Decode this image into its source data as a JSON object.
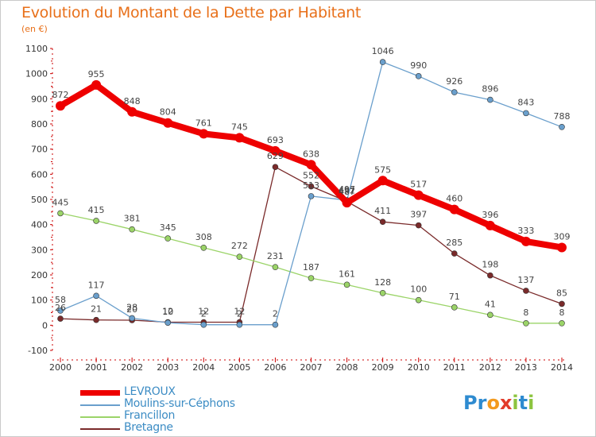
{
  "header": {
    "title": "Evolution du Montant de la Dette par Habitant",
    "unit": "(en €)"
  },
  "logo": {
    "text": "Proxiti",
    "letters": [
      {
        "ch": "P",
        "color": "#2e8bd0"
      },
      {
        "ch": "r",
        "color": "#2e8bd0"
      },
      {
        "ch": "o",
        "color": "#f39a1e"
      },
      {
        "ch": "x",
        "color": "#e23b2a"
      },
      {
        "ch": "i",
        "color": "#8cc43f"
      },
      {
        "ch": "t",
        "color": "#2e8bd0"
      },
      {
        "ch": "i",
        "color": "#8cc43f"
      }
    ]
  },
  "chart_data": {
    "type": "line",
    "x": [
      2000,
      2001,
      2002,
      2003,
      2004,
      2005,
      2006,
      2007,
      2008,
      2009,
      2010,
      2011,
      2012,
      2013,
      2014
    ],
    "ylim": [
      -100,
      1100
    ],
    "yticks": [
      -100,
      0,
      100,
      200,
      300,
      400,
      500,
      600,
      700,
      800,
      900,
      1000,
      1100
    ],
    "grid": false,
    "legend_position": "bottom-left",
    "series": [
      {
        "name": "Bretagne",
        "color": "#7a2a2a",
        "values": [
          26,
          21,
          20,
          12,
          12,
          12,
          629,
          552,
          492,
          411,
          397,
          285,
          198,
          137,
          85
        ],
        "labels": [
          "26",
          "21",
          "20",
          "12",
          "12",
          "12",
          "629",
          "552",
          "492",
          "411",
          "397",
          "285",
          "198",
          "137",
          "85"
        ]
      },
      {
        "name": "Francillon",
        "color": "#9bd468",
        "values": [
          445,
          415,
          381,
          345,
          308,
          272,
          231,
          187,
          161,
          128,
          100,
          71,
          41,
          8,
          8
        ],
        "labels": [
          "445",
          "415",
          "381",
          "345",
          "308",
          "272",
          "231",
          "187",
          "161",
          "128",
          "100",
          "71",
          "41",
          "8",
          "8"
        ]
      },
      {
        "name": "Moulins-sur-Céphons",
        "color": "#6a9fcc",
        "values": [
          58,
          117,
          28,
          10,
          2,
          2,
          2,
          513,
          497,
          1046,
          990,
          926,
          896,
          843,
          788
        ],
        "labels": [
          "58",
          "117",
          "28",
          "10",
          "2",
          "2",
          "2",
          "513",
          "497",
          "1046",
          "990",
          "926",
          "896",
          "843",
          "788"
        ]
      },
      {
        "name": "LEVROUX",
        "color": "#ee0000",
        "values": [
          872,
          955,
          848,
          804,
          761,
          745,
          693,
          638,
          487,
          575,
          517,
          460,
          396,
          333,
          309
        ],
        "labels": [
          "872",
          "955",
          "848",
          "804",
          "761",
          "745",
          "693",
          "638",
          "487",
          "575",
          "517",
          "460",
          "396",
          "333",
          "309"
        ]
      }
    ],
    "legend_order": [
      "LEVROUX",
      "Moulins-sur-Céphons",
      "Francillon",
      "Bretagne"
    ]
  }
}
